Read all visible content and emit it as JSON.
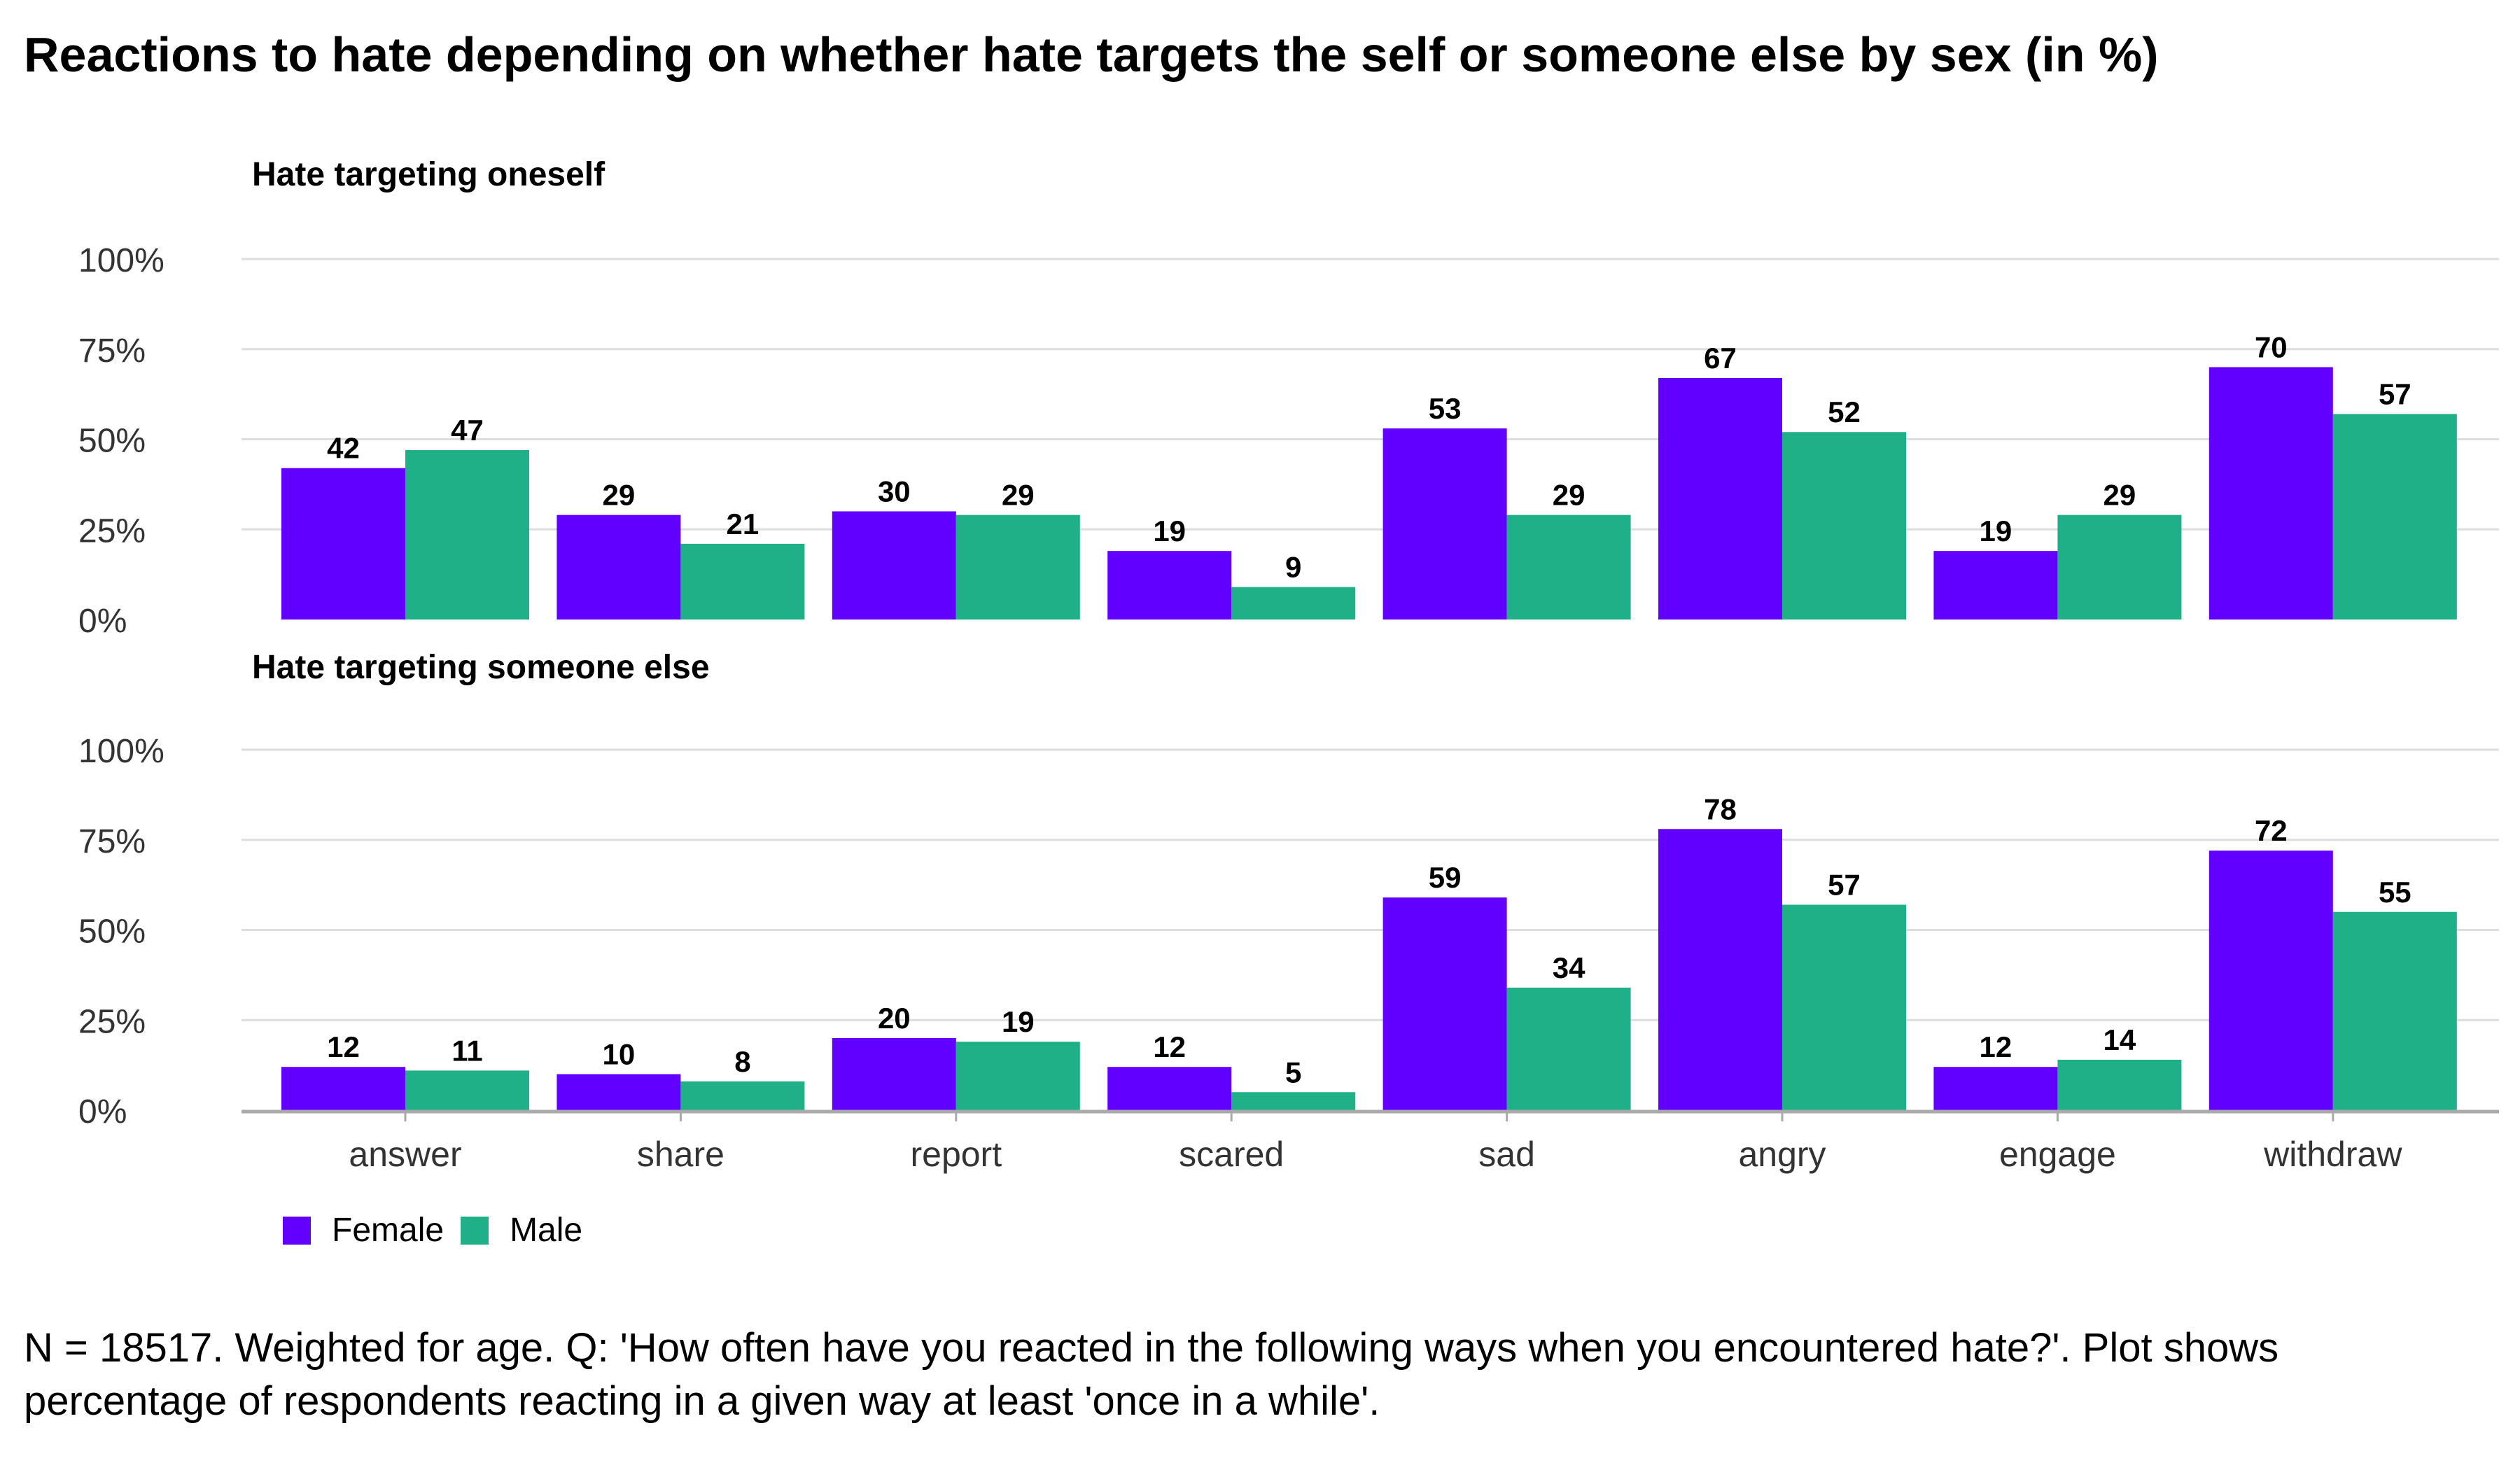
{
  "title": "Reactions to hate depending on whether hate targets the self or someone else by sex (in %)",
  "caption": "N = 18517. Weighted for age. Q: 'How often have you reacted in the following ways when you encountered hate?'. Plot shows percentage of respondents reacting in a given way at least 'once in a while'.",
  "colors": {
    "female": "#6200FF",
    "male": "#20B088",
    "grid": "#DDDDDD",
    "axis": "#AAAAAA"
  },
  "legend": {
    "female_label": "Female",
    "male_label": "Male"
  },
  "chart_data": {
    "type": "bar",
    "categories": [
      "answer",
      "share",
      "report",
      "scared",
      "sad",
      "angry",
      "engage",
      "withdraw"
    ],
    "yticks": [
      "0%",
      "25%",
      "50%",
      "75%",
      "100%"
    ],
    "ylim": [
      0,
      100
    ],
    "legend_position": "bottom-left",
    "grid": true,
    "panels": [
      {
        "title": "Hate targeting oneself",
        "series": [
          {
            "name": "Female",
            "values": [
              42,
              29,
              30,
              19,
              53,
              67,
              19,
              70
            ]
          },
          {
            "name": "Male",
            "values": [
              47,
              21,
              29,
              9,
              29,
              52,
              29,
              57
            ]
          }
        ]
      },
      {
        "title": "Hate targeting someone else",
        "series": [
          {
            "name": "Female",
            "values": [
              12,
              10,
              20,
              12,
              59,
              78,
              12,
              72
            ]
          },
          {
            "name": "Male",
            "values": [
              11,
              8,
              19,
              5,
              34,
              57,
              14,
              55
            ]
          }
        ]
      }
    ]
  }
}
